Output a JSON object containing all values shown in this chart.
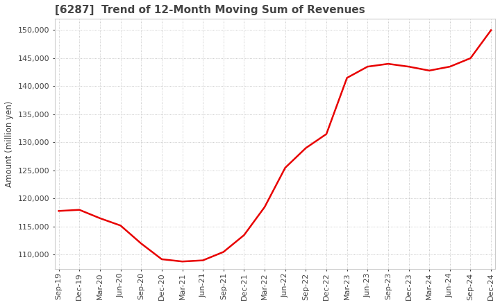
{
  "title": "[6287]  Trend of 12-Month Moving Sum of Revenues",
  "ylabel": "Amount (million yen)",
  "ylim": [
    107500,
    152000
  ],
  "yticks": [
    110000,
    115000,
    120000,
    125000,
    130000,
    135000,
    140000,
    145000,
    150000
  ],
  "line_color": "#e80000",
  "background_color": "#ffffff",
  "grid_color": "#bbbbbb",
  "title_color": "#444444",
  "x_labels": [
    "Sep-19",
    "Dec-19",
    "Mar-20",
    "Jun-20",
    "Sep-20",
    "Dec-20",
    "Mar-21",
    "Jun-21",
    "Sep-21",
    "Dec-21",
    "Mar-22",
    "Jun-22",
    "Sep-22",
    "Dec-22",
    "Mar-23",
    "Jun-23",
    "Sep-23",
    "Dec-23",
    "Mar-24",
    "Jun-24",
    "Sep-24",
    "Dec-24"
  ],
  "values": [
    117800,
    118000,
    116500,
    115200,
    112000,
    109200,
    108800,
    109000,
    110500,
    113500,
    118500,
    125500,
    129000,
    131500,
    141500,
    143500,
    144000,
    143500,
    142800,
    143500,
    145000,
    150000
  ]
}
